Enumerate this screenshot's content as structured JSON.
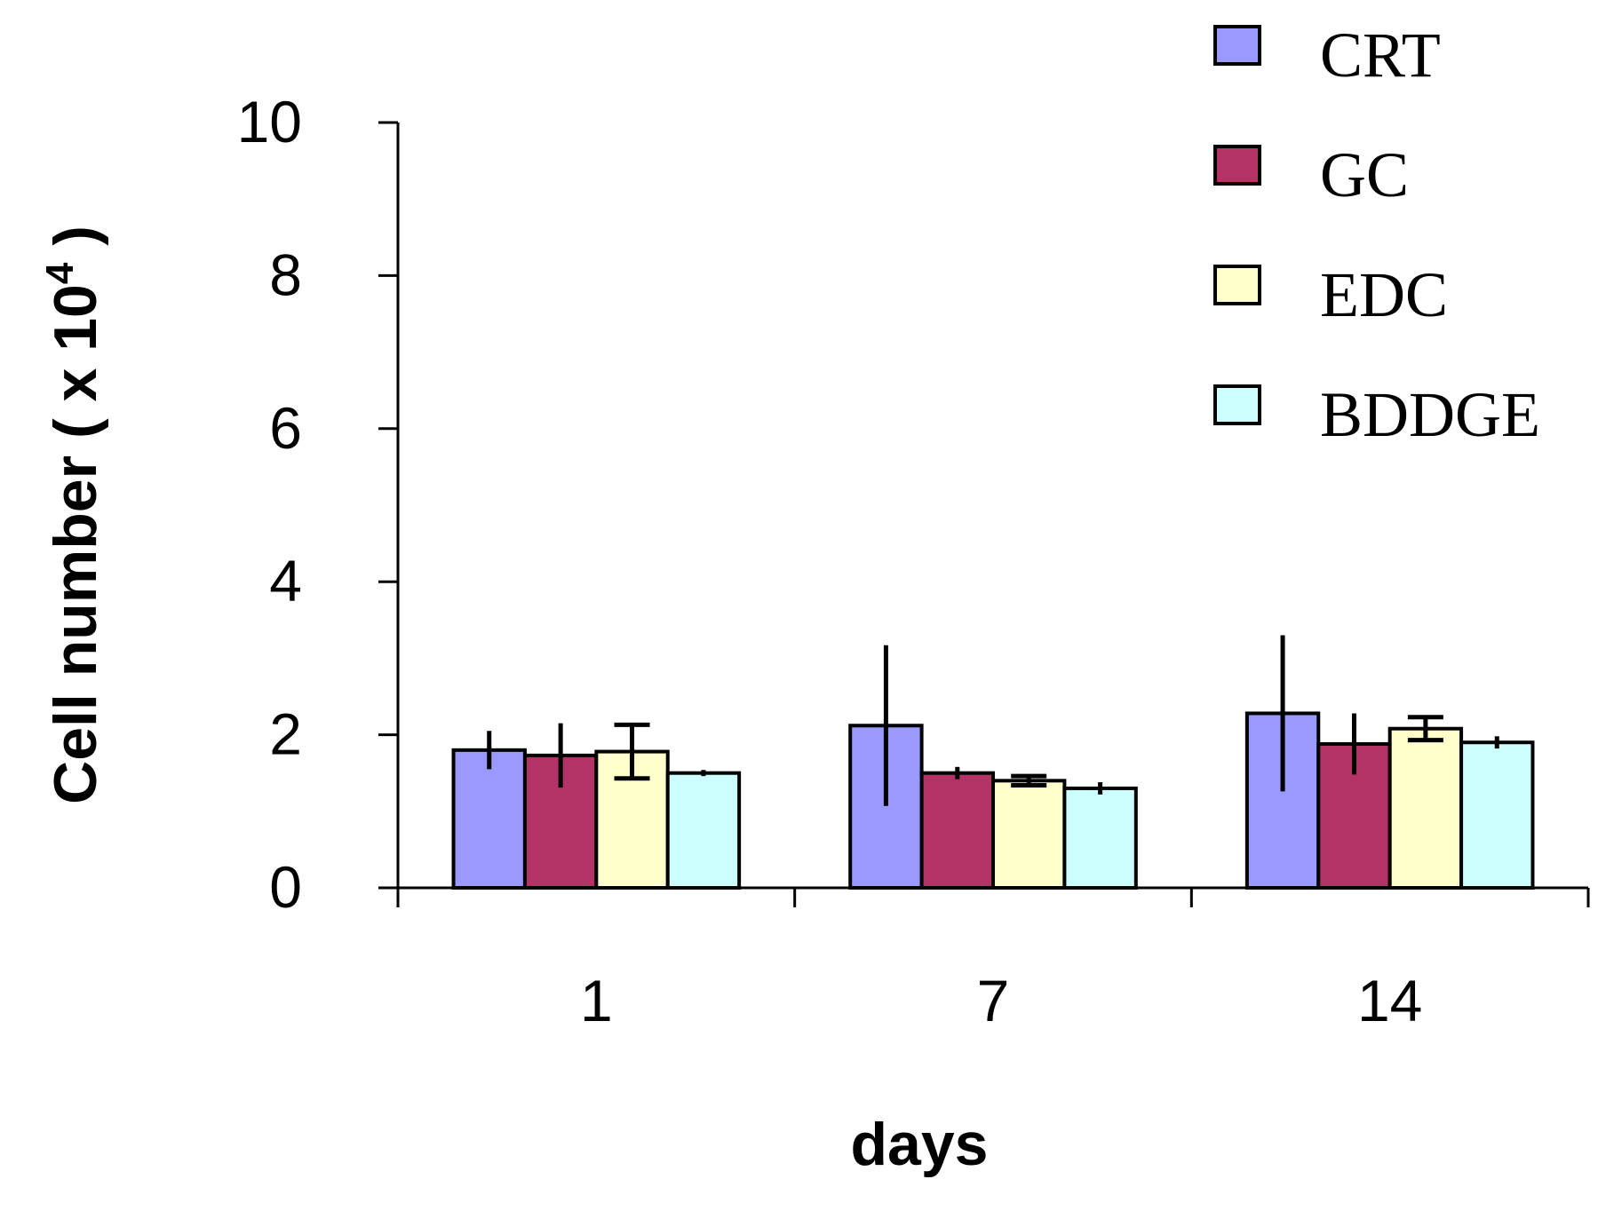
{
  "chart_data": {
    "type": "bar",
    "title": "",
    "xlabel": "days",
    "ylabel": "Cell number ( x 10",
    "ylabel_superscript": "4",
    "ylabel_close": " )",
    "categories": [
      "1",
      "7",
      "14"
    ],
    "ylim": [
      0,
      10
    ],
    "yticks": [
      "0",
      "2",
      "4",
      "6",
      "8",
      "10"
    ],
    "grid": false,
    "legend_position": "top-right",
    "series": [
      {
        "name": "CRT",
        "color": "#9999ff",
        "values": [
          1.8,
          2.12,
          2.28
        ],
        "errors": [
          0.25,
          1.05,
          1.02
        ]
      },
      {
        "name": "GC",
        "color": "#b33366",
        "values": [
          1.73,
          1.5,
          1.88
        ],
        "errors": [
          0.42,
          0.08,
          0.4
        ]
      },
      {
        "name": "EDC",
        "color": "#ffffcc",
        "values": [
          1.78,
          1.4,
          2.08
        ],
        "errors": [
          0.35,
          0.06,
          0.15
        ]
      },
      {
        "name": "BDDGE",
        "color": "#ccffff",
        "values": [
          1.5,
          1.3,
          1.9
        ],
        "errors": [
          0.04,
          0.08,
          0.08
        ]
      }
    ]
  }
}
